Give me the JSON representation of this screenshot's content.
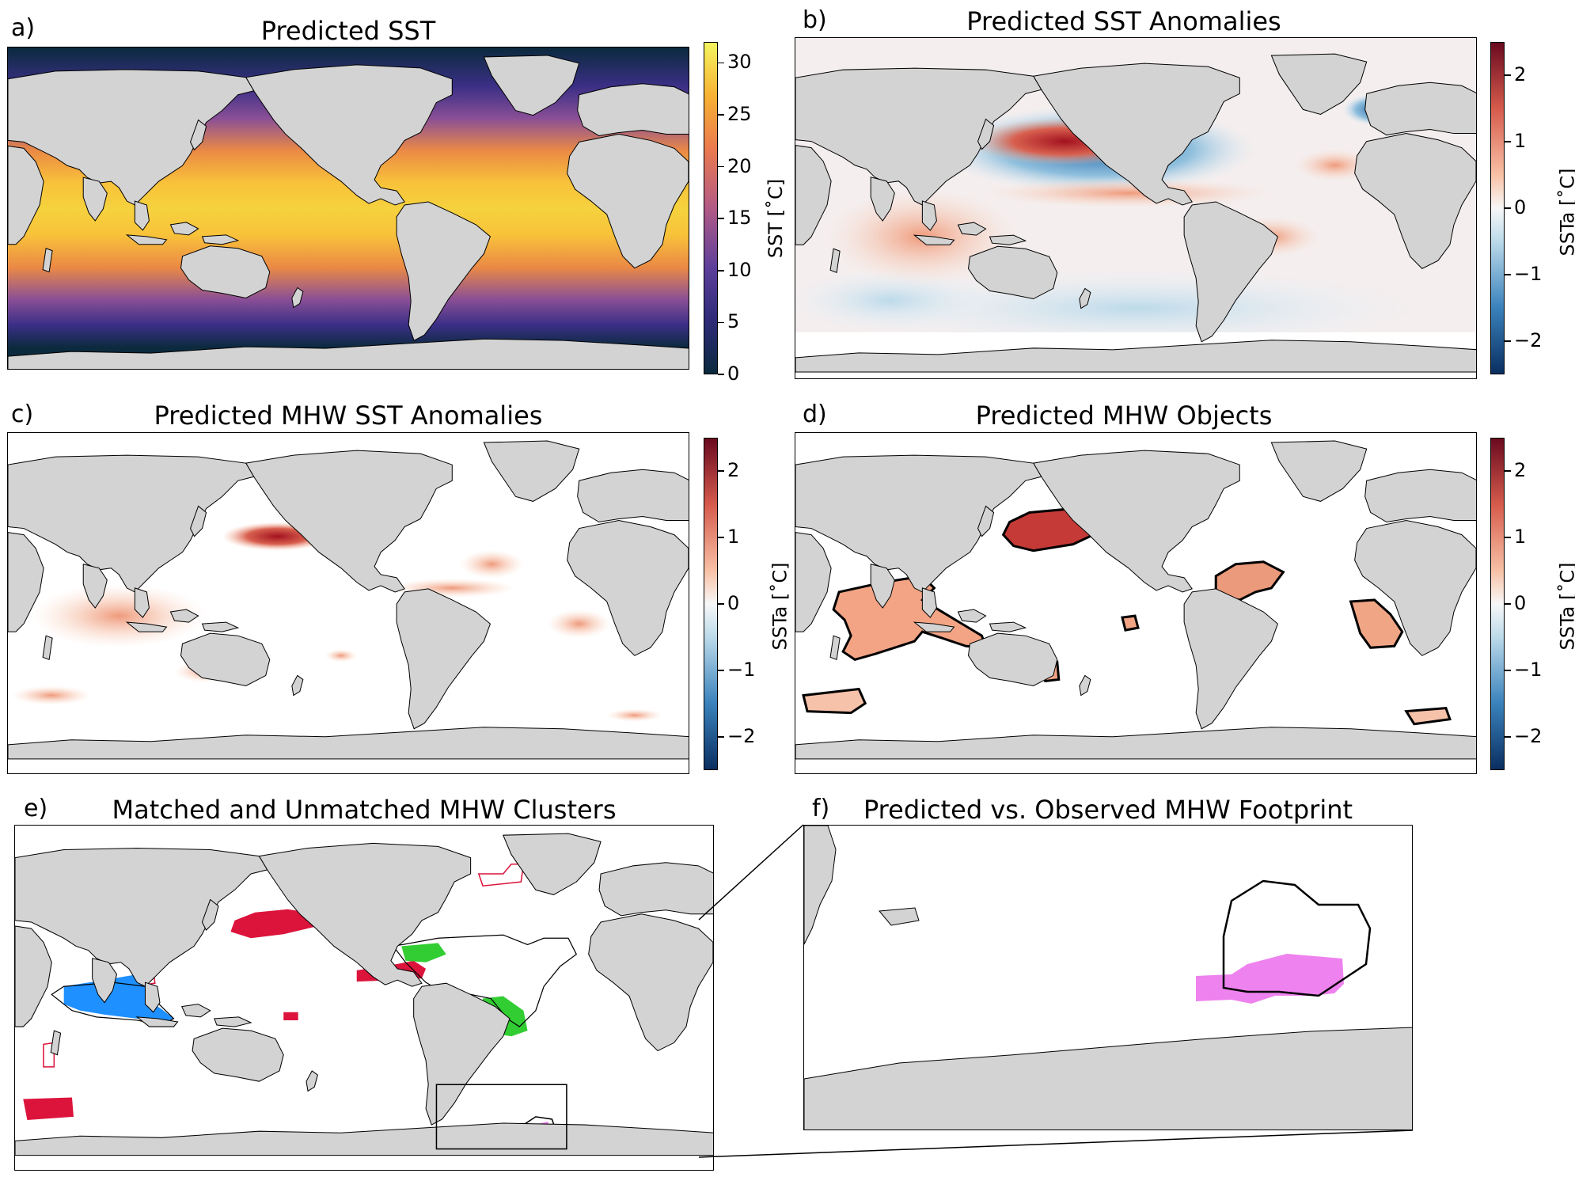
{
  "panels": {
    "a": {
      "letter": "a)",
      "title": "Predicted SST"
    },
    "b": {
      "letter": "b)",
      "title": "Predicted SST Anomalies"
    },
    "c": {
      "letter": "c)",
      "title": "Predicted MHW SST Anomalies"
    },
    "d": {
      "letter": "d)",
      "title": "Predicted MHW Objects"
    },
    "e": {
      "letter": "e)",
      "title": "Matched and Unmatched MHW Clusters"
    },
    "f": {
      "letter": "f)",
      "title": "Predicted vs. Observed MHW Footprint"
    }
  },
  "colorbars": {
    "sst": {
      "label": "SST [$^\\circ$C]",
      "display_label": "SST [˚C]",
      "ticks": [
        "0",
        "5",
        "10",
        "15",
        "20",
        "25",
        "30"
      ],
      "range": [
        0,
        32
      ]
    },
    "ssta": {
      "label": "SSTa [˚C]",
      "ticks": [
        "−2",
        "−1",
        "0",
        "1",
        "2"
      ],
      "range": [
        -2.5,
        2.5
      ]
    }
  },
  "colors": {
    "land": "#d3d3d3",
    "matched_pacific": "#dc143c",
    "matched_indian": "#1e90ff",
    "matched_atlantic": "#32cd32",
    "footprint_predicted": "#ee82ee",
    "unmatched_outline": "#dc143c"
  }
}
